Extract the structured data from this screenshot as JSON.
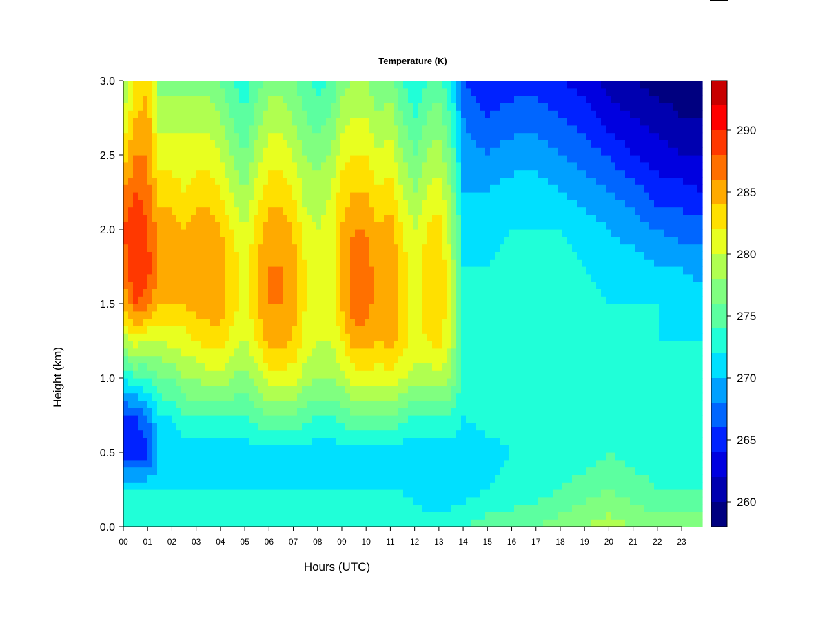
{
  "chart_data": {
    "type": "heatmap",
    "title": "Temperature (K)",
    "xlabel": "Hours (UTC)",
    "ylabel": "Height (km)",
    "x_ticks": [
      "00",
      "01",
      "02",
      "03",
      "04",
      "05",
      "06",
      "07",
      "08",
      "09",
      "10",
      "11",
      "12",
      "13",
      "14",
      "15",
      "16",
      "17",
      "18",
      "19",
      "20",
      "21",
      "22",
      "23"
    ],
    "x_tick_values": [
      0,
      1,
      2,
      3,
      4,
      5,
      6,
      7,
      8,
      9,
      10,
      11,
      12,
      13,
      14,
      15,
      16,
      17,
      18,
      19,
      20,
      21,
      22,
      23
    ],
    "xlim": [
      0,
      23.85
    ],
    "y_ticks": [
      "0.0",
      "0.5",
      "1.0",
      "1.5",
      "2.0",
      "2.5",
      "3.0"
    ],
    "y_tick_values": [
      0,
      0.5,
      1.0,
      1.5,
      2.0,
      2.5,
      3.0
    ],
    "ylim": [
      0,
      3.0
    ],
    "colorbar": {
      "levels": [
        258,
        260,
        262,
        264,
        266,
        268,
        270,
        272,
        274,
        276,
        278,
        280,
        282,
        284,
        286,
        288,
        290,
        292,
        294
      ],
      "colors": [
        "#000080",
        "#0000B0",
        "#0000E0",
        "#0022FF",
        "#0066FF",
        "#00A0FF",
        "#00E0FF",
        "#20FFD8",
        "#5CFFA0",
        "#80FF80",
        "#B0FF50",
        "#E8FF20",
        "#FFE000",
        "#FFAA00",
        "#FF7000",
        "#FF3800",
        "#FF0000",
        "#C80000",
        "#800000"
      ],
      "tick_labels": [
        "260",
        "265",
        "270",
        "275",
        "280",
        "285",
        "290"
      ],
      "tick_values": [
        260,
        265,
        270,
        275,
        280,
        285,
        290
      ],
      "range": [
        258,
        294
      ]
    },
    "grid": false,
    "columns": [
      {
        "x": 0.0,
        "t": [
          274,
          272,
          264,
          266,
          272,
          279,
          284,
          287,
          288,
          286,
          283,
          280,
          278
        ]
      },
      {
        "x": 0.5,
        "t": [
          274,
          272,
          264,
          266,
          274,
          281,
          288,
          290,
          290,
          288,
          286,
          284,
          282
        ]
      },
      {
        "x": 1.0,
        "t": [
          274,
          272,
          265,
          268,
          274,
          280,
          287,
          289,
          288,
          287,
          286,
          285,
          284
        ]
      },
      {
        "x": 1.5,
        "t": [
          274,
          272,
          270,
          272,
          276,
          280,
          284,
          286,
          285,
          283,
          281,
          279,
          277
        ]
      },
      {
        "x": 2.0,
        "t": [
          274,
          272,
          270,
          272,
          276,
          281,
          284,
          285,
          285,
          283,
          281,
          279,
          277
        ]
      },
      {
        "x": 2.5,
        "t": [
          274,
          272,
          271,
          274,
          278,
          281,
          284,
          284,
          284,
          282,
          281,
          279,
          277
        ]
      },
      {
        "x": 3.0,
        "t": [
          274,
          272,
          271,
          274,
          278,
          282,
          285,
          286,
          285,
          283,
          281,
          279,
          277
        ]
      },
      {
        "x": 3.5,
        "t": [
          274,
          272,
          271,
          274,
          279,
          283,
          285,
          286,
          285,
          283,
          281,
          279,
          277
        ]
      },
      {
        "x": 4.0,
        "t": [
          274,
          272,
          271,
          274,
          279,
          283,
          285,
          285,
          284,
          282,
          280,
          278,
          276
        ]
      },
      {
        "x": 4.5,
        "t": [
          274,
          272,
          271,
          274,
          278,
          281,
          283,
          283,
          282,
          280,
          278,
          276,
          274
        ]
      },
      {
        "x": 5.0,
        "t": [
          274,
          272,
          271,
          274,
          277,
          280,
          281,
          281,
          280,
          278,
          276,
          274,
          273
        ]
      },
      {
        "x": 5.5,
        "t": [
          274,
          272,
          271,
          275,
          279,
          282,
          284,
          284,
          283,
          281,
          279,
          277,
          275
        ]
      },
      {
        "x": 6.0,
        "t": [
          274,
          272,
          271,
          276,
          281,
          285,
          286,
          286,
          285,
          283,
          281,
          279,
          277
        ]
      },
      {
        "x": 6.5,
        "t": [
          274,
          272,
          271,
          276,
          281,
          285,
          286,
          286,
          285,
          283,
          281,
          279,
          277
        ]
      },
      {
        "x": 7.0,
        "t": [
          274,
          272,
          271,
          276,
          281,
          284,
          285,
          285,
          284,
          282,
          280,
          278,
          276
        ]
      },
      {
        "x": 7.5,
        "t": [
          274,
          272,
          271,
          275,
          279,
          281,
          282,
          282,
          281,
          279,
          278,
          276,
          275
        ]
      },
      {
        "x": 8.0,
        "t": [
          274,
          272,
          271,
          274,
          278,
          280,
          281,
          281,
          280,
          279,
          277,
          275,
          273
        ]
      },
      {
        "x": 8.5,
        "t": [
          274,
          272,
          271,
          274,
          278,
          280,
          281,
          281,
          281,
          280,
          278,
          276,
          274
        ]
      },
      {
        "x": 9.0,
        "t": [
          274,
          272,
          271,
          275,
          279,
          282,
          284,
          284,
          284,
          283,
          281,
          279,
          277
        ]
      },
      {
        "x": 9.5,
        "t": [
          274,
          272,
          271,
          276,
          281,
          285,
          287,
          287,
          286,
          284,
          282,
          280,
          278
        ]
      },
      {
        "x": 10.0,
        "t": [
          274,
          272,
          271,
          276,
          281,
          285,
          287,
          287,
          286,
          284,
          282,
          280,
          278
        ]
      },
      {
        "x": 10.5,
        "t": [
          274,
          272,
          271,
          276,
          281,
          284,
          285,
          285,
          284,
          282,
          280,
          278,
          276
        ]
      },
      {
        "x": 11.0,
        "t": [
          274,
          272,
          271,
          276,
          281,
          285,
          286,
          286,
          285,
          283,
          281,
          279,
          277
        ]
      },
      {
        "x": 11.5,
        "t": [
          274,
          272,
          271,
          275,
          280,
          283,
          283,
          283,
          282,
          280,
          278,
          276,
          274
        ]
      },
      {
        "x": 12.0,
        "t": [
          274,
          271,
          270,
          274,
          279,
          281,
          281,
          281,
          280,
          278,
          276,
          274,
          272
        ]
      },
      {
        "x": 12.5,
        "t": [
          273,
          270,
          270,
          274,
          279,
          282,
          283,
          283,
          282,
          280,
          278,
          276,
          274
        ]
      },
      {
        "x": 13.0,
        "t": [
          273,
          270,
          270,
          274,
          279,
          283,
          284,
          284,
          283,
          281,
          279,
          277,
          275
        ]
      },
      {
        "x": 13.5,
        "t": [
          273,
          271,
          271,
          274,
          278,
          280,
          280,
          280,
          279,
          278,
          276,
          274,
          272
        ]
      },
      {
        "x": 14.0,
        "t": [
          274,
          271,
          270,
          272,
          273,
          273,
          273,
          272,
          272,
          270,
          269,
          268,
          266
        ]
      },
      {
        "x": 15.0,
        "t": [
          275,
          272,
          271,
          273,
          273,
          273,
          273,
          272,
          271,
          270,
          268,
          266,
          264
        ]
      },
      {
        "x": 16.0,
        "t": [
          275,
          273,
          272,
          273,
          273,
          273,
          273,
          273,
          272,
          271,
          269,
          267,
          265
        ]
      },
      {
        "x": 17.0,
        "t": [
          276,
          273,
          272,
          273,
          273,
          273,
          273,
          273,
          272,
          271,
          269,
          267,
          265
        ]
      },
      {
        "x": 18.0,
        "t": [
          277,
          274,
          273,
          273,
          273,
          273,
          273,
          273,
          272,
          270,
          268,
          266,
          264
        ]
      },
      {
        "x": 19.0,
        "t": [
          278,
          275,
          273,
          273,
          273,
          273,
          273,
          272,
          271,
          269,
          267,
          265,
          263
        ]
      },
      {
        "x": 20.0,
        "t": [
          279,
          276,
          274,
          273,
          273,
          273,
          272,
          271,
          270,
          268,
          266,
          263,
          261
        ]
      },
      {
        "x": 21.0,
        "t": [
          278,
          275,
          273,
          273,
          273,
          273,
          272,
          271,
          269,
          267,
          264,
          262,
          260
        ]
      },
      {
        "x": 22.0,
        "t": [
          277,
          274,
          273,
          273,
          273,
          272,
          272,
          270,
          268,
          265,
          263,
          261,
          259
        ]
      },
      {
        "x": 23.0,
        "t": [
          277,
          274,
          273,
          273,
          273,
          272,
          271,
          270,
          267,
          265,
          262,
          260,
          259
        ]
      },
      {
        "x": 23.85,
        "t": [
          277,
          274,
          273,
          273,
          273,
          272,
          271,
          269,
          267,
          264,
          262,
          260,
          259
        ]
      }
    ],
    "column_heights_km": [
      0.0,
      0.25,
      0.5,
      0.75,
      1.0,
      1.25,
      1.5,
      1.75,
      2.0,
      2.25,
      2.5,
      2.75,
      3.0
    ]
  }
}
